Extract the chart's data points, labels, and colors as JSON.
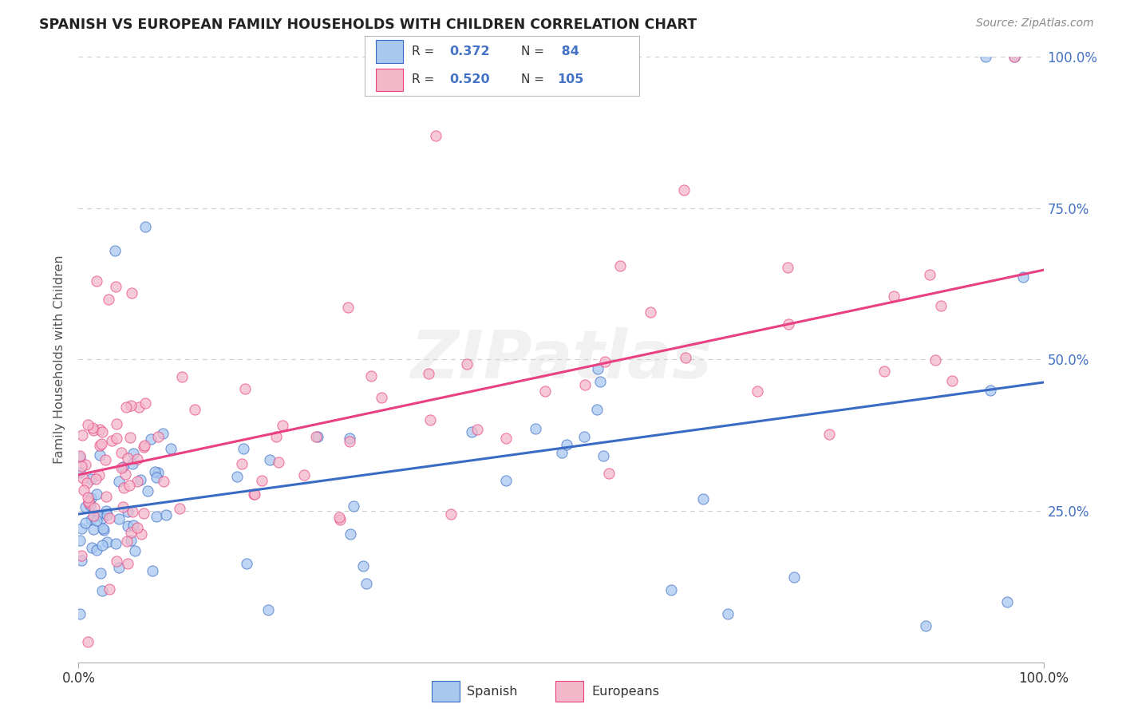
{
  "title": "SPANISH VS EUROPEAN FAMILY HOUSEHOLDS WITH CHILDREN CORRELATION CHART",
  "source": "Source: ZipAtlas.com",
  "ylabel": "Family Households with Children",
  "watermark_text": "ZIPatlas",
  "legend_label1": "Spanish",
  "legend_label2": "Europeans",
  "legend_R1": "0.372",
  "legend_N1": "84",
  "legend_R2": "0.520",
  "legend_N2": "105",
  "color_blue_fill": "#A8C8F0",
  "color_pink_fill": "#F4B8CB",
  "line_color_blue": "#3A6BC4",
  "line_color_pink": "#E84080",
  "legend_text_color": "#4472C4",
  "background_color": "#FFFFFF",
  "grid_color": "#CCCCCC",
  "title_color": "#222222",
  "source_color": "#888888",
  "right_tick_color": "#4472C4",
  "ylabel_color": "#555555"
}
